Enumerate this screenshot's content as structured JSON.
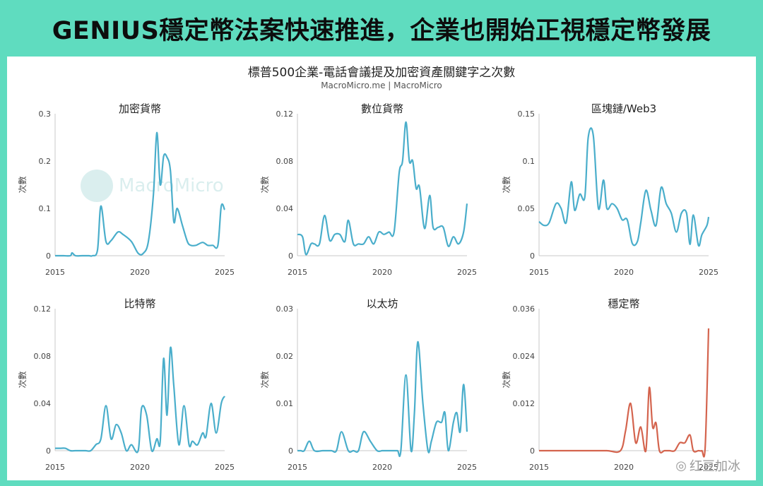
{
  "headline": "GENIUS穩定幣法案快速推進，企業也開始正視穩定幣發展",
  "chart": {
    "title": "標普500企業-電話會議提及加密資產關鍵字之次數",
    "source": "MacroMicro.me | MacroMicro"
  },
  "watermark": "MacroMicro",
  "footer": "红豆加冰",
  "chart_data": [
    {
      "type": "line",
      "title": "加密貨幣",
      "ylabel": "次數",
      "color": "#4aaecb",
      "ylim": [
        0,
        0.3
      ],
      "yticks": [
        "0",
        "0.1",
        "0.2",
        "0.3"
      ],
      "xlim": [
        2015,
        2025
      ],
      "xticks": [
        "2015",
        "2020",
        "2025"
      ],
      "series": [
        {
          "x": [
            2015,
            2015.5,
            2015.9,
            2016,
            2016.2,
            2016.6,
            2017,
            2017.2,
            2017.5,
            2017.7,
            2018,
            2018.3,
            2018.7,
            2019,
            2019.5,
            2019.9,
            2020.2,
            2020.5,
            2020.8,
            2021,
            2021.2,
            2021.4,
            2021.6,
            2021.8,
            2022,
            2022.2,
            2022.5,
            2022.8,
            2023,
            2023.3,
            2023.7,
            2024,
            2024.3,
            2024.6,
            2024.8,
            2025
          ],
          "y": [
            0,
            0,
            0,
            0.006,
            0,
            0,
            0,
            0,
            0.012,
            0.105,
            0.03,
            0.032,
            0.05,
            0.045,
            0.03,
            0.005,
            0.005,
            0.03,
            0.13,
            0.26,
            0.15,
            0.21,
            0.208,
            0.18,
            0.072,
            0.1,
            0.065,
            0.03,
            0.022,
            0.022,
            0.028,
            0.022,
            0.022,
            0.022,
            0.105,
            0.097
          ]
        }
      ]
    },
    {
      "type": "line",
      "title": "數位貨幣",
      "ylabel": "次數",
      "color": "#4aaecb",
      "ylim": [
        0,
        0.12
      ],
      "yticks": [
        "0",
        "0.04",
        "0.08",
        "0.12"
      ],
      "xlim": [
        2015,
        2025
      ],
      "xticks": [
        "2015",
        "2020",
        "2025"
      ],
      "series": [
        {
          "x": [
            2015,
            2015.3,
            2015.5,
            2015.8,
            2016,
            2016.3,
            2016.6,
            2016.9,
            2017.2,
            2017.5,
            2017.8,
            2018,
            2018.3,
            2018.6,
            2018.9,
            2019.2,
            2019.5,
            2019.8,
            2020.1,
            2020.4,
            2020.7,
            2021,
            2021.2,
            2021.4,
            2021.6,
            2021.8,
            2022,
            2022.2,
            2022.5,
            2022.8,
            2023,
            2023.3,
            2023.6,
            2023.9,
            2024.2,
            2024.5,
            2024.8,
            2025
          ],
          "y": [
            0.018,
            0.016,
            0.001,
            0.01,
            0.01,
            0.01,
            0.034,
            0.013,
            0.018,
            0.018,
            0.012,
            0.03,
            0.01,
            0.01,
            0.01,
            0.016,
            0.01,
            0.02,
            0.018,
            0.02,
            0.02,
            0.07,
            0.08,
            0.113,
            0.08,
            0.08,
            0.057,
            0.058,
            0.023,
            0.051,
            0.024,
            0.024,
            0.024,
            0.008,
            0.016,
            0.01,
            0.02,
            0.044
          ]
        }
      ]
    },
    {
      "type": "line",
      "title": "區塊鏈/Web3",
      "ylabel": "次數",
      "color": "#4aaecb",
      "ylim": [
        0,
        0.15
      ],
      "yticks": [
        "0",
        "0.05",
        "0.1",
        "0.15"
      ],
      "xlim": [
        2015,
        2025
      ],
      "xticks": [
        "2015",
        "2020",
        "2025"
      ],
      "series": [
        {
          "x": [
            2015,
            2015.3,
            2015.6,
            2016,
            2016.3,
            2016.6,
            2016.9,
            2017.1,
            2017.4,
            2017.7,
            2017.9,
            2018.2,
            2018.5,
            2018.8,
            2019,
            2019.3,
            2019.6,
            2019.9,
            2020.2,
            2020.5,
            2020.8,
            2021,
            2021.3,
            2021.6,
            2021.9,
            2022.2,
            2022.5,
            2022.8,
            2023.1,
            2023.4,
            2023.7,
            2023.9,
            2024.1,
            2024.4,
            2024.6,
            2024.9,
            2025
          ],
          "y": [
            0.036,
            0.032,
            0.035,
            0.055,
            0.05,
            0.035,
            0.078,
            0.048,
            0.065,
            0.062,
            0.125,
            0.127,
            0.05,
            0.08,
            0.05,
            0.055,
            0.05,
            0.038,
            0.038,
            0.013,
            0.015,
            0.035,
            0.069,
            0.048,
            0.032,
            0.072,
            0.055,
            0.045,
            0.025,
            0.045,
            0.045,
            0.012,
            0.043,
            0.011,
            0.022,
            0.032,
            0.041
          ]
        }
      ]
    },
    {
      "type": "line",
      "title": "比特幣",
      "ylabel": "次數",
      "color": "#4aaecb",
      "ylim": [
        0,
        0.12
      ],
      "yticks": [
        "0",
        "0.04",
        "0.08",
        "0.12"
      ],
      "xlim": [
        2015,
        2025
      ],
      "xticks": [
        "2015",
        "2020",
        "2025"
      ],
      "series": [
        {
          "x": [
            2015,
            2015.3,
            2015.6,
            2015.9,
            2016.2,
            2016.5,
            2016.8,
            2017.1,
            2017.4,
            2017.7,
            2018,
            2018.3,
            2018.6,
            2018.9,
            2019.2,
            2019.5,
            2019.9,
            2020.1,
            2020.4,
            2020.7,
            2021,
            2021.2,
            2021.4,
            2021.6,
            2021.8,
            2022,
            2022.3,
            2022.6,
            2022.9,
            2023.1,
            2023.4,
            2023.7,
            2023.9,
            2024.2,
            2024.5,
            2024.8,
            2025
          ],
          "y": [
            0.002,
            0.002,
            0.002,
            0,
            0,
            0,
            0,
            0,
            0.005,
            0.01,
            0.038,
            0.01,
            0.022,
            0.015,
            0,
            0.005,
            0,
            0.036,
            0.03,
            0,
            0.01,
            0.008,
            0.078,
            0.03,
            0.087,
            0.055,
            0.005,
            0.038,
            0.005,
            0.008,
            0.005,
            0.015,
            0.012,
            0.04,
            0.015,
            0.04,
            0.046
          ]
        }
      ]
    },
    {
      "type": "line",
      "title": "以太坊",
      "ylabel": "次數",
      "color": "#4aaecb",
      "ylim": [
        0,
        0.03
      ],
      "yticks": [
        "0",
        "0.01",
        "0.02",
        "0.03"
      ],
      "xlim": [
        2015,
        2025
      ],
      "xticks": [
        "2015",
        "2020",
        "2025"
      ],
      "series": [
        {
          "x": [
            2015,
            2015.2,
            2015.4,
            2015.7,
            2016,
            2016.5,
            2017,
            2017.3,
            2017.6,
            2018,
            2018.3,
            2018.6,
            2018.9,
            2019.3,
            2019.7,
            2020,
            2020.3,
            2020.6,
            2020.9,
            2021.1,
            2021.4,
            2021.7,
            2021.9,
            2022.1,
            2022.4,
            2022.7,
            2022.9,
            2023.2,
            2023.5,
            2023.7,
            2023.9,
            2024.2,
            2024.4,
            2024.6,
            2024.8,
            2025
          ],
          "y": [
            0,
            0,
            0,
            0.002,
            0,
            0,
            0,
            0,
            0.004,
            0,
            0,
            0,
            0.004,
            0.002,
            0,
            0,
            0,
            0,
            0,
            0,
            0.016,
            0,
            0.008,
            0.023,
            0.01,
            0,
            0.002,
            0.006,
            0.006,
            0.008,
            0,
            0.006,
            0.008,
            0.004,
            0.014,
            0.004
          ]
        }
      ]
    },
    {
      "type": "line",
      "title": "穩定幣",
      "ylabel": "次數",
      "color": "#d4644e",
      "ylim": [
        0,
        0.036
      ],
      "yticks": [
        "0",
        "0.012",
        "0.024",
        "0.036"
      ],
      "xlim": [
        2015,
        2025
      ],
      "xticks": [
        "2015",
        "2020",
        "2025"
      ],
      "series": [
        {
          "x": [
            2015,
            2016,
            2017,
            2018,
            2019,
            2019.8,
            2020.1,
            2020.4,
            2020.7,
            2021,
            2021.3,
            2021.5,
            2021.7,
            2021.9,
            2022.1,
            2022.4,
            2022.7,
            2023,
            2023.3,
            2023.6,
            2023.9,
            2024.1,
            2024.4,
            2024.6,
            2024.8,
            2025
          ],
          "y": [
            0,
            0,
            0,
            0,
            0,
            0,
            0.005,
            0.012,
            0.002,
            0.006,
            0,
            0.016,
            0.006,
            0.007,
            0,
            0,
            0,
            0,
            0.002,
            0.002,
            0.004,
            0,
            0,
            0,
            0.001,
            0.031
          ]
        }
      ]
    }
  ]
}
